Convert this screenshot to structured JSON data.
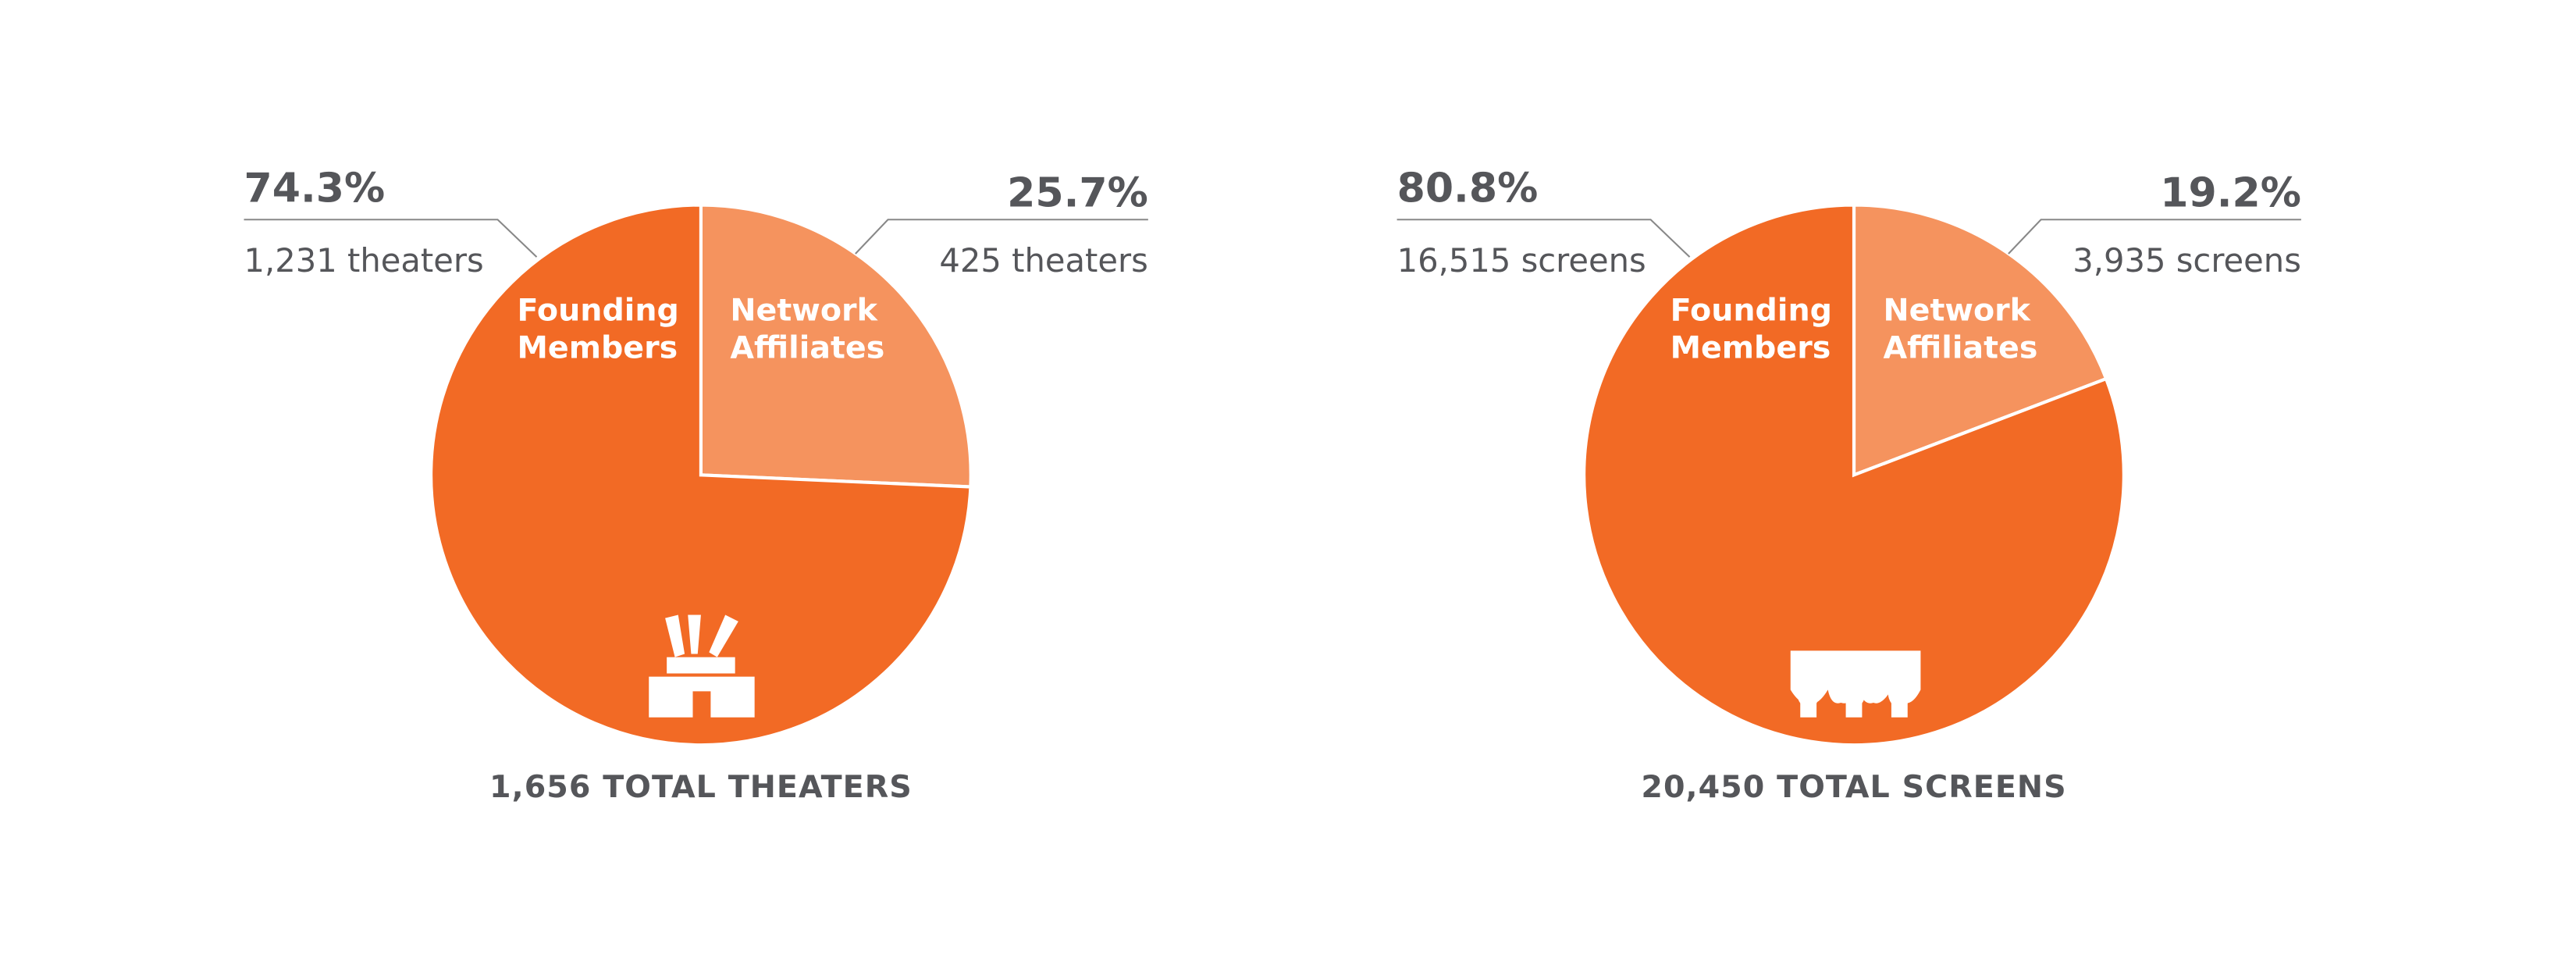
{
  "chart_data": [
    {
      "type": "pie",
      "categories": [
        "Founding Members",
        "Network Affiliates"
      ],
      "values": [
        74.3,
        25.7
      ],
      "value_labels": [
        "74.3%",
        "25.7%"
      ],
      "counts": [
        "1,231 theaters",
        "425 theaters"
      ],
      "colors": [
        "#f26a25",
        "#f5935e"
      ],
      "total_label": "1,656 TOTAL THEATERS",
      "icon": "theater"
    },
    {
      "type": "pie",
      "categories": [
        "Founding Members",
        "Network Affiliates"
      ],
      "values": [
        80.8,
        19.2
      ],
      "value_labels": [
        "80.8%",
        "19.2%"
      ],
      "counts": [
        "16,515 screens",
        "3,935 screens"
      ],
      "colors": [
        "#f26a25",
        "#f5935e"
      ],
      "total_label": "20,450 TOTAL SCREENS",
      "icon": "screen"
    }
  ]
}
